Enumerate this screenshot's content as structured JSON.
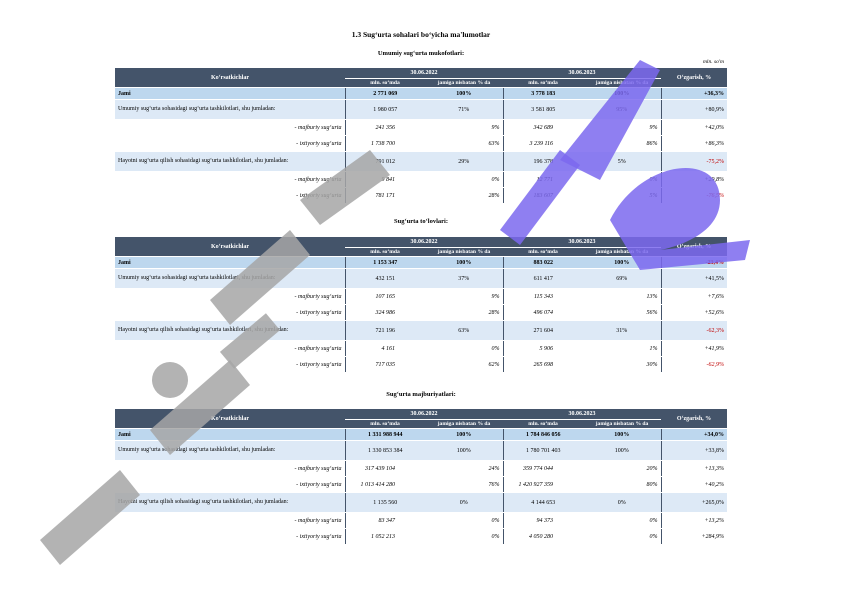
{
  "page_title": "1.3 Sug‘urta sohalari bo‘yicha ma'lumotlar",
  "unit_note": "mln. so'm",
  "header": {
    "indicators": "Ko‘rsatkichlar",
    "date_a": "30.06.2022",
    "date_b": "30.06.2023",
    "change": "O‘zgarish, %",
    "col_amount": "mln. so‘mda",
    "col_share": "jamiga nisbatan % da"
  },
  "sections": [
    {
      "title": "Umumiy sug‘urta mukofotlari:",
      "rows": [
        {
          "type": "total",
          "label": "Jami",
          "a": "2 771 069",
          "a_pct": "100%",
          "b": "3 778 183",
          "b_pct": "100%",
          "chg": "+36,3%",
          "neg": false
        },
        {
          "type": "group",
          "label": "Umumiy sug‘urta sohasidagi sug‘urta tashkilotlari, shu jumladan:",
          "a": "1 980 057",
          "a_pct": "71%",
          "b": "3 581 805",
          "b_pct": "95%",
          "chg": "+80,9%",
          "neg": false
        },
        {
          "type": "sub",
          "label": "- majburiy sug‘urta",
          "a": "241 356",
          "a_pct": "9%",
          "b": "342 689",
          "b_pct": "9%",
          "chg": "+42,0%",
          "neg": false
        },
        {
          "type": "sub",
          "label": "- ixtiyoriy sug‘urta",
          "a": "1 738 700",
          "a_pct": "63%",
          "b": "3 239 116",
          "b_pct": "86%",
          "chg": "+86,3%",
          "neg": false
        },
        {
          "type": "group",
          "label": "Hayotni sug‘urta qilish sohasidagi sug‘urta tashkilotlari, shu jumladan:",
          "a": "791 012",
          "a_pct": "29%",
          "b": "196 378",
          "b_pct": "5%",
          "chg": "-75,2%",
          "neg": true
        },
        {
          "type": "sub",
          "label": "- majburiy sug‘urta",
          "a": "9 841",
          "a_pct": "0%",
          "b": "12 771",
          "b_pct": "0%",
          "chg": "+29,8%",
          "neg": false
        },
        {
          "type": "sub",
          "label": "- ixtiyoriy sug‘urta",
          "a": "781 171",
          "a_pct": "28%",
          "b": "183 607",
          "b_pct": "5%",
          "chg": "-76,5%",
          "neg": true
        }
      ]
    },
    {
      "title": "Sug‘urta to‘lovlari:",
      "rows": [
        {
          "type": "total",
          "label": "Jami",
          "a": "1 153 347",
          "a_pct": "100%",
          "b": "883 022",
          "b_pct": "100%",
          "chg": "-23,4%",
          "neg": true
        },
        {
          "type": "group",
          "label": "Umumiy sug‘urta sohasidagi sug‘urta tashkilotlari, shu jumladan:",
          "a": "432 151",
          "a_pct": "37%",
          "b": "611 417",
          "b_pct": "69%",
          "chg": "+41,5%",
          "neg": false
        },
        {
          "type": "sub",
          "label": "- majburiy sug‘urta",
          "a": "107 165",
          "a_pct": "9%",
          "b": "115 343",
          "b_pct": "13%",
          "chg": "+7,6%",
          "neg": false
        },
        {
          "type": "sub",
          "label": "- ixtiyoriy sug‘urta",
          "a": "324 986",
          "a_pct": "28%",
          "b": "496 074",
          "b_pct": "56%",
          "chg": "+52,6%",
          "neg": false
        },
        {
          "type": "group",
          "label": "Hayotni sug‘urta qilish sohasidagi sug‘urta tashkilotlari, shu jumladan:",
          "a": "721 196",
          "a_pct": "63%",
          "b": "271 604",
          "b_pct": "31%",
          "chg": "-62,3%",
          "neg": true
        },
        {
          "type": "sub",
          "label": "- majburiy sug‘urta",
          "a": "4 161",
          "a_pct": "0%",
          "b": "5 906",
          "b_pct": "1%",
          "chg": "+41,9%",
          "neg": false
        },
        {
          "type": "sub",
          "label": "- ixtiyoriy sug‘urta",
          "a": "717 035",
          "a_pct": "62%",
          "b": "265 698",
          "b_pct": "30%",
          "chg": "-62,9%",
          "neg": true
        }
      ]
    },
    {
      "title": "Sug‘urta majburiyatlari:",
      "rows": [
        {
          "type": "total",
          "label": "Jami",
          "a": "1 331 988 944",
          "a_pct": "100%",
          "b": "1 784 846 056",
          "b_pct": "100%",
          "chg": "+34,0%",
          "neg": false
        },
        {
          "type": "group",
          "label": "Umumiy sug‘urta sohasidagi sug‘urta tashkilotlari, shu jumladan:",
          "a": "1 330 853 384",
          "a_pct": "100%",
          "b": "1 780 701 403",
          "b_pct": "100%",
          "chg": "+33,8%",
          "neg": false
        },
        {
          "type": "sub",
          "label": "- majburiy sug‘urta",
          "a": "317 439 104",
          "a_pct": "24%",
          "b": "359 774 044",
          "b_pct": "20%",
          "chg": "+13,3%",
          "neg": false
        },
        {
          "type": "sub",
          "label": "- ixtiyoriy sug‘urta",
          "a": "1 013 414 280",
          "a_pct": "76%",
          "b": "1 420 927 359",
          "b_pct": "80%",
          "chg": "+40,2%",
          "neg": false
        },
        {
          "type": "group",
          "label": "Hayotni sug‘urta qilish sohasidagi sug‘urta tashkilotlari, shu jumladan:",
          "a": "1 135 560",
          "a_pct": "0%",
          "b": "4 144 653",
          "b_pct": "0%",
          "chg": "+265,0%",
          "neg": false
        },
        {
          "type": "sub",
          "label": "- majburiy sug‘urta",
          "a": "83 347",
          "a_pct": "0%",
          "b": "94 373",
          "b_pct": "0%",
          "chg": "+13,2%",
          "neg": false
        },
        {
          "type": "sub",
          "label": "- ixtiyoriy sug‘urta",
          "a": "1 052 213",
          "a_pct": "0%",
          "b": "4 050 280",
          "b_pct": "0%",
          "chg": "+284,9%",
          "neg": false
        }
      ]
    }
  ],
  "watermark": {
    "text": "Hujjat.uz",
    "colors": {
      "gray": "#a6a6a6",
      "violet": "#7b68ee"
    }
  },
  "colors": {
    "header_bg": "#44546a",
    "total_bg": "#bdd7ee",
    "group_bg": "#dde9f6",
    "negative": "#c00000"
  }
}
